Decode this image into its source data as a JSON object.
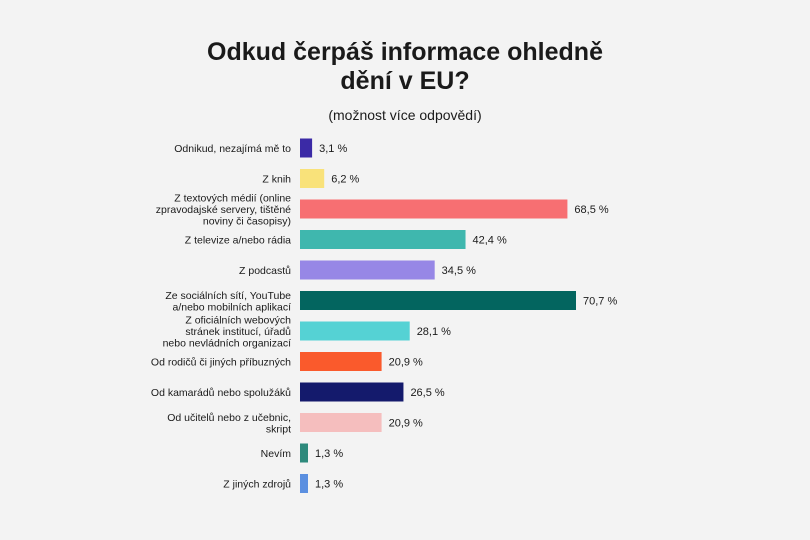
{
  "title_line1": "Odkud čerpáš informace ohledně",
  "title_line2": "dění v EU?",
  "subtitle": "(možnost více odpovědí)",
  "chart_data": {
    "type": "bar",
    "orientation": "horizontal",
    "title": "Odkud čerpáš informace ohledně dění v EU?",
    "subtitle": "(možnost více odpovědí)",
    "xlim": [
      0,
      70.7
    ],
    "grid": false,
    "categories": [
      [
        "Odnikud, nezajímá mě to"
      ],
      [
        "Z knih"
      ],
      [
        "Z textových médií (online",
        "zpravodajské servery, tištěné",
        "noviny či časopisy)"
      ],
      [
        "Z televize a/nebo rádia"
      ],
      [
        "Z podcastů"
      ],
      [
        "Ze sociálních sítí, YouTube",
        "a/nebo mobilních aplikací"
      ],
      [
        "Z oficiálních webových",
        "stránek institucí, úřadů",
        "nebo nevládních organizací"
      ],
      [
        "Od rodičů či jiných příbuzných"
      ],
      [
        "Od kamarádů nebo spolužáků"
      ],
      [
        "Od učitelů nebo z učebnic,",
        "skript"
      ],
      [
        "Nevím"
      ],
      [
        "Z jiných zdrojů"
      ]
    ],
    "values": [
      3.1,
      6.2,
      68.5,
      42.4,
      34.5,
      70.7,
      28.1,
      20.9,
      26.5,
      20.9,
      1.3,
      1.3
    ],
    "value_labels": [
      "3,1 %",
      "6,2 %",
      "68,5 %",
      "42,4 %",
      "34,5 %",
      "70,7 %",
      "28,1 %",
      "20,9 %",
      "26,5 %",
      "20,9 %",
      "1,3 %",
      "1,3 %"
    ],
    "colors": [
      "#3b2aa6",
      "#f9e27a",
      "#f76f72",
      "#3fb7ae",
      "#9787e6",
      "#03655f",
      "#55d2d4",
      "#fa5a2c",
      "#141a6c",
      "#f5bebe",
      "#2e8a7c",
      "#5b8fe0"
    ]
  }
}
